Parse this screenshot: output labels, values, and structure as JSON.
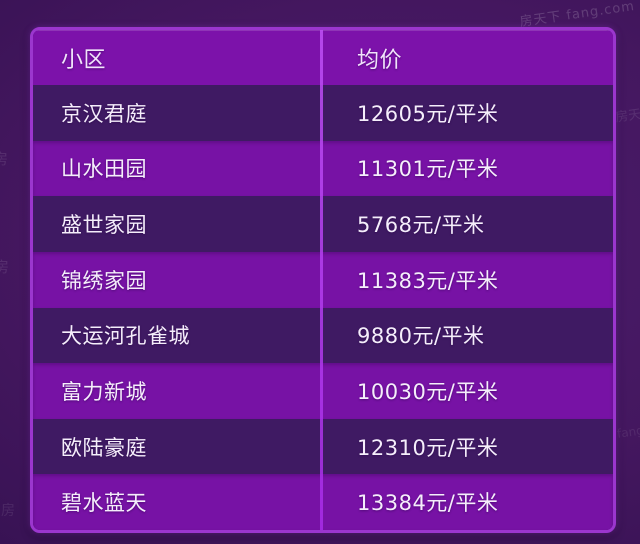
{
  "watermarks": {
    "site_label": "房天下 fang.com",
    "fragment_left": "房",
    "fragment_right": "房天下",
    "fragment_small": "fang"
  },
  "table": {
    "columns": [
      {
        "key": "name",
        "label": "小区"
      },
      {
        "key": "price",
        "label": "均价"
      }
    ],
    "rows": [
      {
        "name": "京汉君庭",
        "price": "12605元/平米"
      },
      {
        "name": "山水田园",
        "price": "11301元/平米"
      },
      {
        "name": "盛世家园",
        "price": "5768元/平米"
      },
      {
        "name": "锦绣家园",
        "price": "11383元/平米"
      },
      {
        "name": "大运河孔雀城",
        "price": "9880元/平米"
      },
      {
        "name": "富力新城",
        "price": "10030元/平米"
      },
      {
        "name": "欧陆豪庭",
        "price": "12310元/平米"
      },
      {
        "name": "碧水蓝天",
        "price": "13384元/平米"
      }
    ]
  },
  "chart_data": {
    "type": "table",
    "title": "",
    "columns": [
      "小区",
      "均价"
    ],
    "rows": [
      [
        "京汉君庭",
        "12605元/平米"
      ],
      [
        "山水田园",
        "11301元/平米"
      ],
      [
        "盛世家园",
        "5768元/平米"
      ],
      [
        "锦绣家园",
        "11383元/平米"
      ],
      [
        "大运河孔雀城",
        "9880元/平米"
      ],
      [
        "富力新城",
        "10030元/平米"
      ],
      [
        "欧陆豪庭",
        "12310元/平米"
      ],
      [
        "碧水蓝天",
        "13384元/平米"
      ]
    ],
    "unit": "元/平米",
    "prices_numeric": [
      12605,
      11301,
      5768,
      11383,
      9880,
      10030,
      12310,
      13384
    ]
  },
  "colors": {
    "header_bg": "#7c12aa",
    "row_dark_bg": "#3f1a63",
    "row_bright_bg": "#7712a5",
    "border": "#9b36ce",
    "divider": "#b44cee",
    "text": "#f5eefb",
    "background": "#44175f"
  }
}
